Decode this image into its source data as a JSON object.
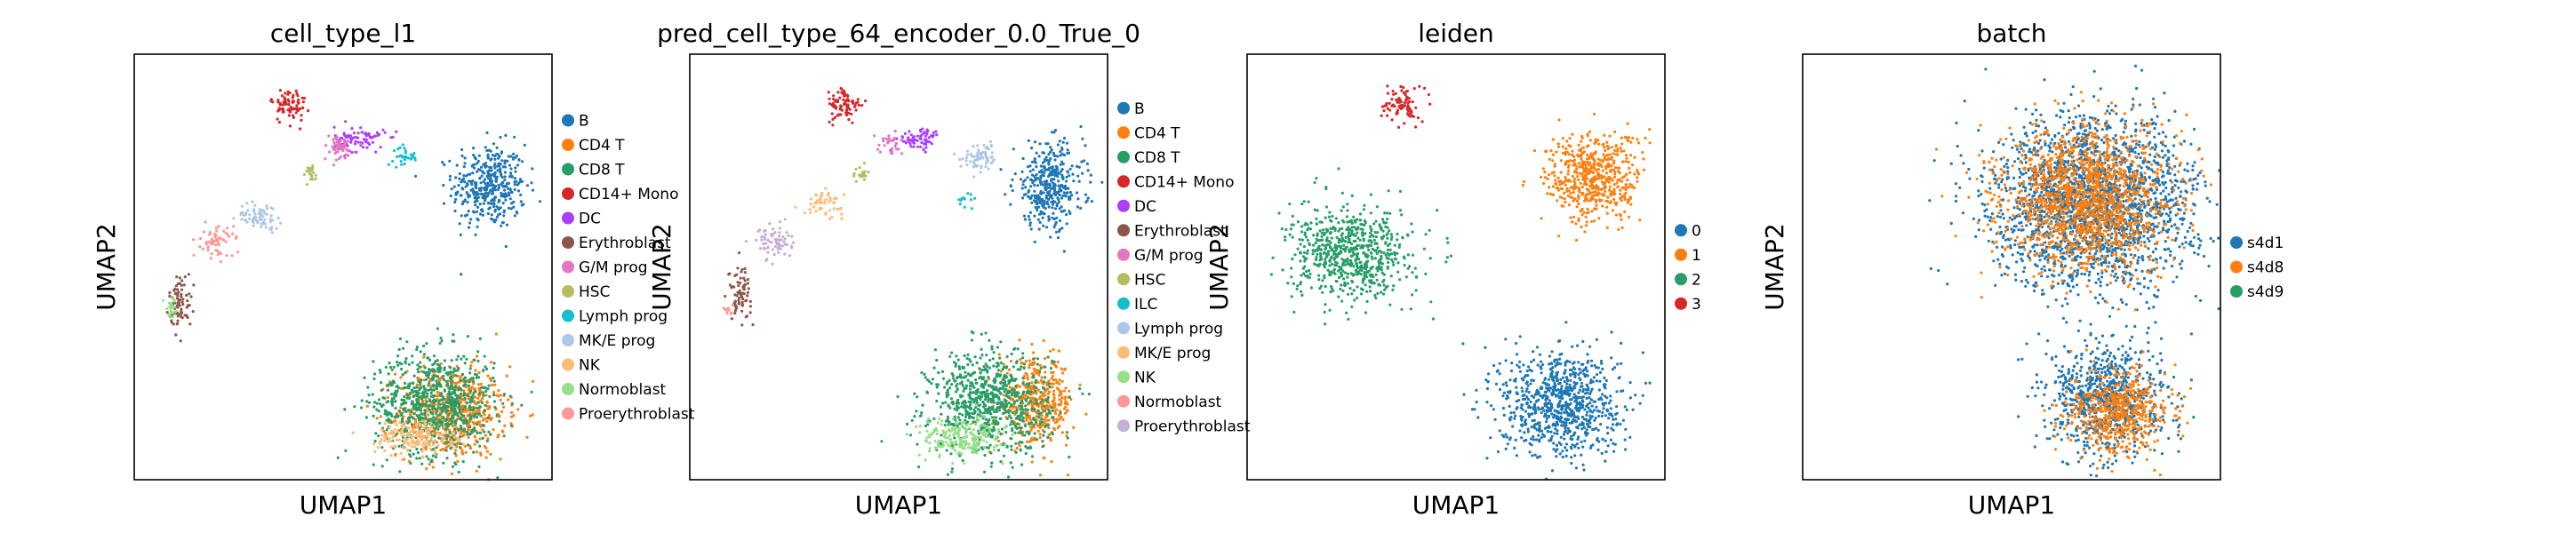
{
  "figure": {
    "background": "#ffffff"
  },
  "chart_data": [
    {
      "type": "scatter",
      "title": "cell_type_l1",
      "xlabel": "UMAP1",
      "ylabel": "UMAP2",
      "grid": false,
      "legend_position": "right-outside",
      "categories": [
        "B",
        "CD4 T",
        "CD8 T",
        "CD14+ Mono",
        "DC",
        "Erythroblast",
        "G/M prog",
        "HSC",
        "Lymph prog",
        "MK/E prog",
        "NK",
        "Normoblast",
        "Proerythroblast"
      ],
      "colors": [
        "#1f77b4",
        "#ff7f0e",
        "#279e68",
        "#d62728",
        "#aa40fc",
        "#8c564b",
        "#e377c2",
        "#b5bd61",
        "#17becf",
        "#aec7e8",
        "#ffbb78",
        "#98df8a",
        "#ff9896"
      ],
      "xlim": [
        0,
        10
      ],
      "ylim": [
        0,
        10
      ],
      "clusters": [
        {
          "name": "B",
          "category": 0,
          "x": 8.5,
          "y": 6.9,
          "w": 1.15,
          "h": 1.3
        },
        {
          "name": "CD4 T",
          "category": 1,
          "x": 7.6,
          "y": 1.6,
          "w": 1.7,
          "h": 1.4
        },
        {
          "name": "CD8 T",
          "category": 2,
          "x": 7.2,
          "y": 1.8,
          "w": 1.9,
          "h": 1.6
        },
        {
          "name": "CD14+ Mono",
          "category": 3,
          "x": 3.7,
          "y": 8.8,
          "w": 0.55,
          "h": 0.55
        },
        {
          "name": "DC",
          "category": 4,
          "x": 5.4,
          "y": 8.0,
          "w": 0.8,
          "h": 0.4
        },
        {
          "name": "Erythroblast",
          "category": 5,
          "x": 1.1,
          "y": 4.2,
          "w": 0.35,
          "h": 0.85
        },
        {
          "name": "G/M prog",
          "category": 6,
          "x": 4.9,
          "y": 7.8,
          "w": 0.5,
          "h": 0.4
        },
        {
          "name": "HSC",
          "category": 7,
          "x": 4.2,
          "y": 7.2,
          "w": 0.3,
          "h": 0.3
        },
        {
          "name": "Lymph prog",
          "category": 8,
          "x": 6.5,
          "y": 7.6,
          "w": 0.4,
          "h": 0.3
        },
        {
          "name": "MK/E prog",
          "category": 9,
          "x": 3.0,
          "y": 6.2,
          "w": 0.7,
          "h": 0.4
        },
        {
          "name": "NK",
          "category": 10,
          "x": 6.7,
          "y": 1.0,
          "w": 1.2,
          "h": 0.55
        },
        {
          "name": "Normoblast",
          "category": 11,
          "x": 0.9,
          "y": 4.0,
          "w": 0.25,
          "h": 0.35
        },
        {
          "name": "Proerythroblast",
          "category": 12,
          "x": 2.0,
          "y": 5.6,
          "w": 0.5,
          "h": 0.5
        }
      ]
    },
    {
      "type": "scatter",
      "title": "pred_cell_type_64_encoder_0.0_True_0",
      "xlabel": "UMAP1",
      "ylabel": "UMAP2",
      "grid": false,
      "legend_position": "right-outside",
      "categories": [
        "B",
        "CD4 T",
        "CD8 T",
        "CD14+ Mono",
        "DC",
        "Erythroblast",
        "G/M prog",
        "HSC",
        "ILC",
        "Lymph prog",
        "MK/E prog",
        "NK",
        "Normoblast",
        "Proerythroblast"
      ],
      "colors": [
        "#1f77b4",
        "#ff7f0e",
        "#279e68",
        "#d62728",
        "#aa40fc",
        "#8c564b",
        "#e377c2",
        "#b5bd61",
        "#17becf",
        "#aec7e8",
        "#ffbb78",
        "#98df8a",
        "#ff9896",
        "#c5b0d5"
      ],
      "xlim": [
        0,
        10
      ],
      "ylim": [
        0,
        10
      ],
      "clusters": [
        {
          "name": "B",
          "category": 0,
          "x": 8.6,
          "y": 6.9,
          "w": 1.1,
          "h": 1.3
        },
        {
          "name": "CD4 T",
          "category": 1,
          "x": 8.3,
          "y": 1.8,
          "w": 1.2,
          "h": 1.3
        },
        {
          "name": "CD8 T",
          "category": 2,
          "x": 7.2,
          "y": 1.8,
          "w": 1.9,
          "h": 1.6
        },
        {
          "name": "CD14+ Mono",
          "category": 3,
          "x": 3.7,
          "y": 8.8,
          "w": 0.55,
          "h": 0.55
        },
        {
          "name": "DC",
          "category": 4,
          "x": 5.5,
          "y": 8.0,
          "w": 0.7,
          "h": 0.35
        },
        {
          "name": "Erythroblast",
          "category": 5,
          "x": 1.2,
          "y": 4.4,
          "w": 0.35,
          "h": 0.8
        },
        {
          "name": "G/M prog",
          "category": 6,
          "x": 4.8,
          "y": 7.9,
          "w": 0.4,
          "h": 0.3
        },
        {
          "name": "HSC",
          "category": 7,
          "x": 4.1,
          "y": 7.2,
          "w": 0.3,
          "h": 0.25
        },
        {
          "name": "ILC",
          "category": 8,
          "x": 6.6,
          "y": 6.6,
          "w": 0.25,
          "h": 0.2
        },
        {
          "name": "Lymph prog",
          "category": 9,
          "x": 7.0,
          "y": 7.6,
          "w": 0.6,
          "h": 0.45
        },
        {
          "name": "MK/E prog",
          "category": 10,
          "x": 3.2,
          "y": 6.5,
          "w": 0.6,
          "h": 0.35
        },
        {
          "name": "NK",
          "category": 11,
          "x": 6.5,
          "y": 1.0,
          "w": 1.3,
          "h": 0.6
        },
        {
          "name": "Normoblast",
          "category": 12,
          "x": 0.9,
          "y": 4.0,
          "w": 0.2,
          "h": 0.2
        },
        {
          "name": "Proerythroblast",
          "category": 13,
          "x": 2.0,
          "y": 5.6,
          "w": 0.55,
          "h": 0.5
        }
      ]
    },
    {
      "type": "scatter",
      "title": "leiden",
      "xlabel": "UMAP1",
      "ylabel": "UMAP2",
      "grid": false,
      "legend_position": "right-outside",
      "categories": [
        "0",
        "1",
        "2",
        "3"
      ],
      "colors": [
        "#1f77b4",
        "#ff7f0e",
        "#279e68",
        "#d62728"
      ],
      "xlim": [
        0,
        10
      ],
      "ylim": [
        0,
        10
      ],
      "clusters": [
        {
          "name": "0",
          "category": 0,
          "x": 7.5,
          "y": 1.8,
          "w": 1.9,
          "h": 1.7
        },
        {
          "name": "1",
          "category": 1,
          "x": 8.3,
          "y": 7.1,
          "w": 1.5,
          "h": 1.4
        },
        {
          "name": "2",
          "category": 2,
          "x": 2.5,
          "y": 5.3,
          "w": 1.9,
          "h": 1.4
        },
        {
          "name": "3",
          "category": 3,
          "x": 3.7,
          "y": 8.8,
          "w": 0.55,
          "h": 0.6
        }
      ]
    },
    {
      "type": "scatter",
      "title": "batch",
      "xlabel": "UMAP1",
      "ylabel": "UMAP2",
      "grid": false,
      "legend_position": "right-outside",
      "categories": [
        "s4d1",
        "s4d8",
        "s4d9"
      ],
      "colors": [
        "#1f77b4",
        "#ff7f0e",
        "#279e68"
      ],
      "xlim": [
        0,
        10
      ],
      "ylim": [
        0,
        10
      ],
      "clusters": [
        {
          "name": "s4d1",
          "category": 0,
          "x": 7.0,
          "y": 6.5,
          "w": 3.2,
          "h": 2.6
        },
        {
          "name": "s4d1",
          "category": 0,
          "x": 7.3,
          "y": 1.9,
          "w": 1.8,
          "h": 1.7
        },
        {
          "name": "s4d8",
          "category": 1,
          "x": 7.6,
          "y": 1.6,
          "w": 1.6,
          "h": 1.3
        },
        {
          "name": "s4d8",
          "category": 1,
          "x": 6.8,
          "y": 6.6,
          "w": 2.6,
          "h": 2.2
        }
      ]
    }
  ]
}
